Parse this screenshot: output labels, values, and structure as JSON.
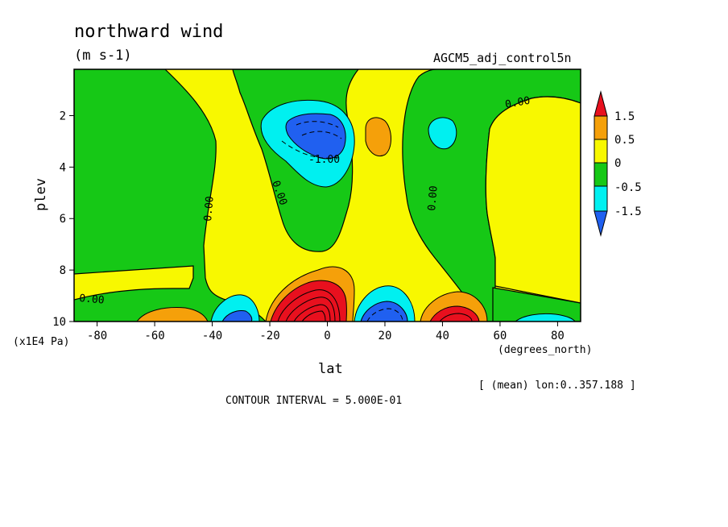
{
  "header": {
    "title": "northward wind",
    "units": "(m s-1)",
    "dataset": "AGCM5_adj_control5n"
  },
  "chart_data": {
    "type": "heatmap",
    "title": "northward wind",
    "subtitle": "(m s-1)",
    "xlabel": "lat",
    "xunits": "(degrees_north)",
    "ylabel": "plev",
    "yunits": "(x1E4 Pa)",
    "xlim": [
      -88,
      88
    ],
    "ylim": [
      10,
      0.2
    ],
    "x_ticks": [
      -80,
      -60,
      -40,
      -20,
      0,
      20,
      40,
      60,
      80
    ],
    "y_ticks": [
      2,
      4,
      6,
      8,
      10
    ],
    "contour_interval_text": "CONTOUR INTERVAL = 5.000E-01",
    "averaging_text": "[ (mean) lon:0..357.188 ]",
    "contour_labels": [
      "0.00",
      "0.00",
      "0.00",
      "0.00",
      "0.00",
      "0.00",
      "-1.00"
    ],
    "colorbar": {
      "levels": [
        "1.5",
        "0.5",
        "0",
        "-0.5",
        "-1.5"
      ],
      "colors": [
        "#e8101e",
        "#f5a00a",
        "#f8f800",
        "#16c816",
        "#00f0f0",
        "#2060f0"
      ]
    },
    "features": [
      {
        "type": "min",
        "lat": -2,
        "plev": 2.8,
        "value": -1.5
      },
      {
        "type": "max",
        "lat": 17,
        "plev": 2.8,
        "value": 0.7
      },
      {
        "type": "min",
        "lat": 43,
        "plev": 2.6,
        "value": -0.7
      },
      {
        "type": "max",
        "lat": -2,
        "plev": 9.8,
        "value": 3.0
      },
      {
        "type": "min",
        "lat": 22,
        "plev": 9.9,
        "value": -1.8
      },
      {
        "type": "max",
        "lat": 46,
        "plev": 9.9,
        "value": 1.7
      },
      {
        "type": "min",
        "lat": -31,
        "plev": 9.9,
        "value": -1.4
      },
      {
        "type": "max",
        "lat": -52,
        "plev": 9.9,
        "value": 0.8
      },
      {
        "type": "min",
        "lat": 72,
        "plev": 9.9,
        "value": -0.6
      }
    ]
  }
}
